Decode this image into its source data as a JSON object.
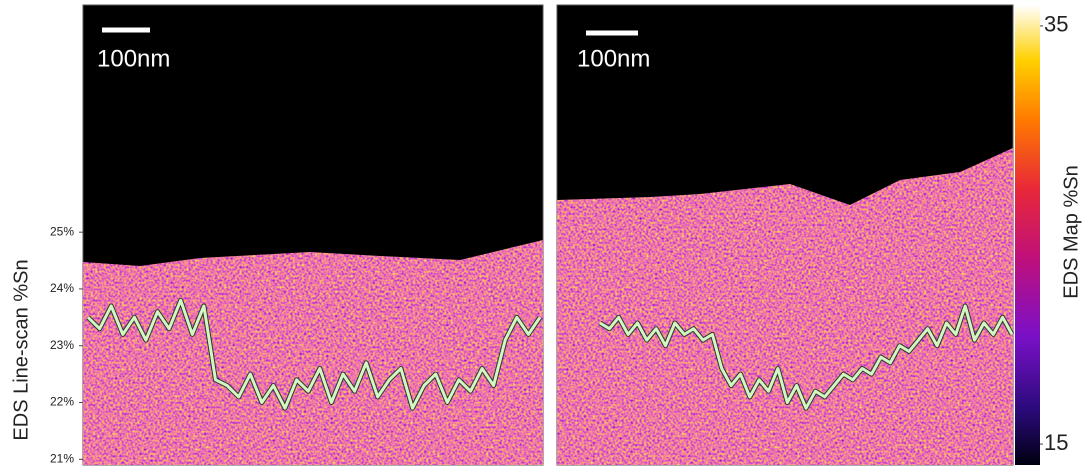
{
  "chart_data": [
    {
      "type": "line",
      "annotation": "100nm",
      "ylabel": "EDS Line-scan %Sn",
      "ylim": [
        20.9,
        29
      ],
      "yticks": [
        {
          "value": 21,
          "label": "21%"
        },
        {
          "value": 22,
          "label": "22%"
        },
        {
          "value": 23,
          "label": "23%"
        },
        {
          "value": 24,
          "label": "24%"
        },
        {
          "value": 25,
          "label": "25%"
        }
      ],
      "color": "#d4f5c4",
      "values": [
        23.5,
        23.3,
        23.7,
        23.2,
        23.5,
        23.1,
        23.6,
        23.3,
        23.8,
        23.2,
        23.7,
        22.4,
        22.3,
        22.1,
        22.5,
        22.0,
        22.3,
        21.9,
        22.4,
        22.2,
        22.6,
        22.0,
        22.5,
        22.2,
        22.7,
        22.1,
        22.4,
        22.6,
        21.9,
        22.3,
        22.5,
        22.0,
        22.4,
        22.2,
        22.6,
        22.3,
        23.1,
        23.5,
        23.2,
        23.5
      ]
    },
    {
      "type": "line",
      "annotation": "100nm",
      "ylim": [
        20.9,
        29
      ],
      "color": "#d4f5c4",
      "values": [
        23.4,
        23.3,
        23.5,
        23.2,
        23.4,
        23.1,
        23.3,
        23.0,
        23.4,
        23.2,
        23.3,
        23.1,
        23.2,
        22.6,
        22.3,
        22.5,
        22.1,
        22.4,
        22.2,
        22.6,
        22.0,
        22.3,
        21.9,
        22.2,
        22.1,
        22.3,
        22.5,
        22.4,
        22.6,
        22.5,
        22.8,
        22.7,
        23.0,
        22.9,
        23.1,
        23.3,
        23.0,
        23.4,
        23.2,
        23.7,
        23.1,
        23.4,
        23.2,
        23.5,
        23.2
      ]
    }
  ],
  "colorbar": {
    "label": "EDS Map %Sn",
    "lim": [
      14,
      36
    ],
    "ticks": [
      15,
      35
    ]
  }
}
